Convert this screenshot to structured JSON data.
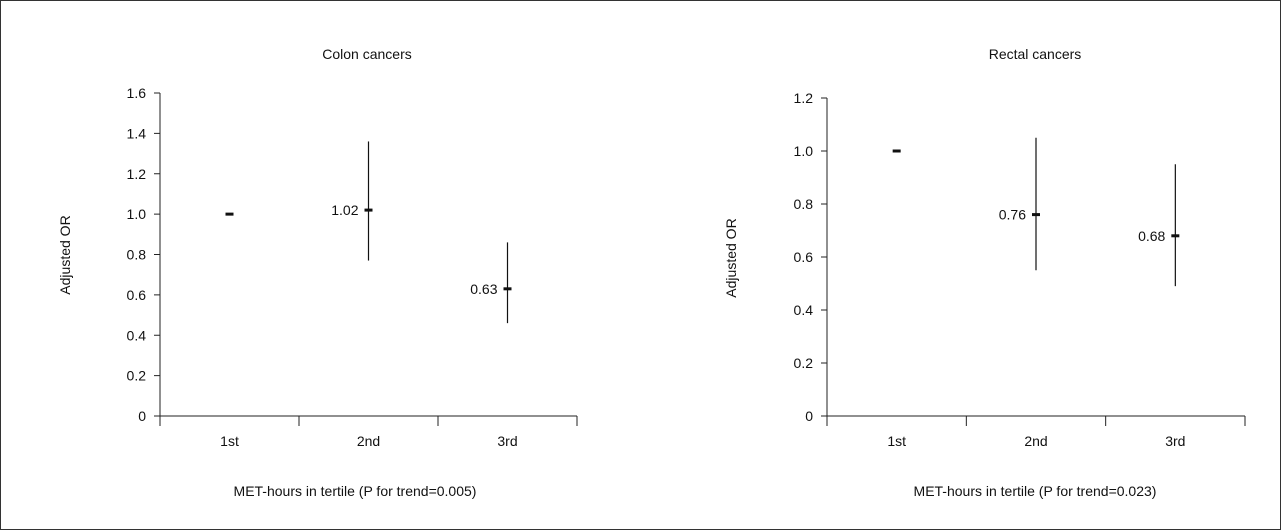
{
  "chart_data": [
    {
      "type": "scatter",
      "title": "Colon cancers",
      "xlabel": "MET-hours in tertile (P for trend=0.005)",
      "ylabel": "Adjusted OR",
      "categories": [
        "1st",
        "2nd",
        "3rd"
      ],
      "ylim": [
        0,
        1.6
      ],
      "yticks": [
        "0",
        "0.2",
        "0.4",
        "0.6",
        "0.8",
        "1.0",
        "1.2",
        "1.4",
        "1.6"
      ],
      "points": [
        {
          "category": "1st",
          "value": 1.0,
          "label": "",
          "ci_low": null,
          "ci_high": null
        },
        {
          "category": "2nd",
          "value": 1.02,
          "label": "1.02",
          "ci_low": 0.77,
          "ci_high": 1.36
        },
        {
          "category": "3rd",
          "value": 0.63,
          "label": "0.63",
          "ci_low": 0.46,
          "ci_high": 0.86
        }
      ],
      "grid": false
    },
    {
      "type": "scatter",
      "title": "Rectal cancers",
      "xlabel": "MET-hours in tertile (P for trend=0.023)",
      "ylabel": "Adjusted OR",
      "categories": [
        "1st",
        "2nd",
        "3rd"
      ],
      "ylim": [
        0,
        1.2
      ],
      "yticks": [
        "0",
        "0.2",
        "0.4",
        "0.6",
        "0.8",
        "1.0",
        "1.2"
      ],
      "points": [
        {
          "category": "1st",
          "value": 1.0,
          "label": "",
          "ci_low": null,
          "ci_high": null
        },
        {
          "category": "2nd",
          "value": 0.76,
          "label": "0.76",
          "ci_low": 0.55,
          "ci_high": 1.05
        },
        {
          "category": "3rd",
          "value": 0.68,
          "label": "0.68",
          "ci_low": 0.49,
          "ci_high": 0.95
        }
      ],
      "grid": false
    }
  ]
}
